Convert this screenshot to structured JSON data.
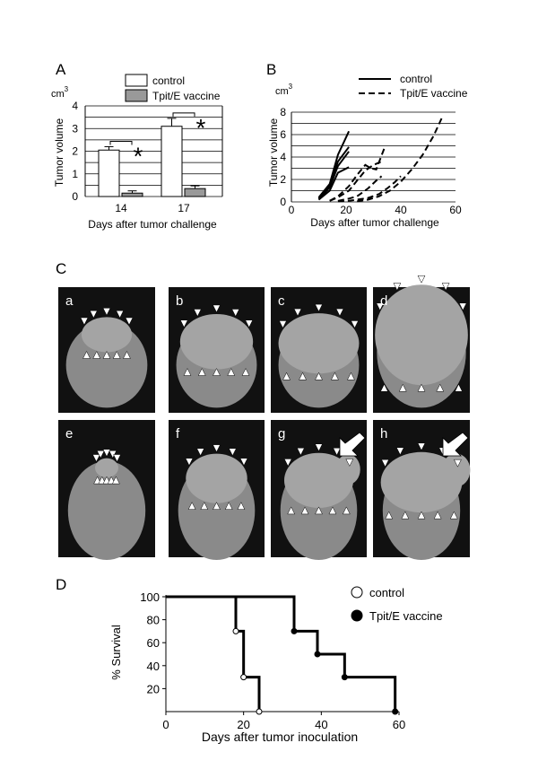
{
  "panels": {
    "A": {
      "letter": "A"
    },
    "B": {
      "letter": "B"
    },
    "C": {
      "letter": "C"
    },
    "D": {
      "letter": "D"
    }
  },
  "chart_data": [
    {
      "panel": "A",
      "type": "bar",
      "unit_label": "cm",
      "unit_exp": "3",
      "ylabel": "Tumor volume",
      "xlabel": "Days after tumor challenge",
      "categories": [
        "14",
        "17"
      ],
      "ylim": [
        0,
        4
      ],
      "yticks": [
        "0",
        "1",
        "2",
        "3",
        "4"
      ],
      "grid": true,
      "legend_position": "top",
      "series": [
        {
          "name": "control",
          "color": "#ffffff",
          "values": [
            2.05,
            3.1
          ],
          "errors": [
            0.15,
            0.35
          ]
        },
        {
          "name": "Tpit/E vaccine",
          "color": "#999999",
          "values": [
            0.15,
            0.35
          ],
          "errors": [
            0.1,
            0.12
          ]
        }
      ],
      "significance": [
        "*",
        "*"
      ]
    },
    {
      "panel": "B",
      "type": "line",
      "unit_label": "cm",
      "unit_exp": "3",
      "ylabel": "Tumor volume",
      "xlabel": "Days after tumor challenge",
      "xlim": [
        0,
        60
      ],
      "ylim": [
        0,
        8
      ],
      "xticks": [
        "0",
        "20",
        "40",
        "60"
      ],
      "yticks": [
        "0",
        "2",
        "4",
        "6",
        "8"
      ],
      "grid": true,
      "legend_position": "top",
      "series": [
        {
          "name": "control",
          "style": "solid",
          "lines": [
            {
              "x": [
                10,
                14,
                17,
                21
              ],
              "y": [
                0.4,
                1.6,
                4.2,
                6.3
              ]
            },
            {
              "x": [
                10,
                14,
                17,
                21
              ],
              "y": [
                0.3,
                1.5,
                3.6,
                4.9
              ]
            },
            {
              "x": [
                10,
                14,
                17,
                21
              ],
              "y": [
                0.2,
                1.3,
                3.2,
                4.5
              ]
            },
            {
              "x": [
                10,
                14,
                17,
                21
              ],
              "y": [
                0.2,
                1.0,
                2.6,
                3.1
              ]
            }
          ]
        },
        {
          "name": "Tpit/E vaccine",
          "style": "dashed",
          "lines": [
            {
              "x": [
                14,
                17,
                21,
                24,
                27,
                29,
                31,
                34
              ],
              "y": [
                0.1,
                0.5,
                1.4,
                2.4,
                3.3,
                3.0,
                2.9,
                4.8
              ]
            },
            {
              "x": [
                14,
                17,
                21,
                24,
                27,
                30,
                33
              ],
              "y": [
                0.1,
                0.4,
                1.0,
                1.9,
                2.8,
                3.3,
                3.6
              ]
            },
            {
              "x": [
                17,
                21,
                24,
                28,
                31,
                33
              ],
              "y": [
                0.1,
                0.3,
                0.5,
                1.2,
                1.9,
                2.3
              ]
            },
            {
              "x": [
                24,
                28,
                32,
                36,
                40,
                44,
                48,
                52,
                55
              ],
              "y": [
                0.05,
                0.2,
                0.5,
                1.0,
                1.8,
                2.9,
                4.2,
                5.9,
                7.5
              ]
            },
            {
              "x": [
                17,
                21,
                24,
                28,
                32,
                35,
                38,
                40
              ],
              "y": [
                0.05,
                0.1,
                0.2,
                0.35,
                0.7,
                1.2,
                1.8,
                2.3
              ]
            }
          ]
        }
      ]
    },
    {
      "panel": "D",
      "type": "line",
      "ylabel": "% Survival",
      "xlabel": "Days after tumor inoculation",
      "xlim": [
        0,
        60
      ],
      "ylim": [
        0,
        100
      ],
      "xticks": [
        "0",
        "20",
        "40",
        "60"
      ],
      "yticks": [
        "20",
        "40",
        "60",
        "80",
        "100"
      ],
      "grid": false,
      "legend_position": "top-right",
      "series": [
        {
          "name": "control",
          "marker": "open-circle",
          "step": true,
          "x": [
            0,
            18,
            20,
            24
          ],
          "y": [
            100,
            70,
            30,
            0
          ]
        },
        {
          "name": "Tpit/E vaccine",
          "marker": "filled-circle",
          "step": true,
          "x": [
            0,
            33,
            39,
            46,
            59
          ],
          "y": [
            100,
            70,
            50,
            30,
            0
          ]
        }
      ]
    }
  ],
  "ct_images": [
    {
      "label": "a"
    },
    {
      "label": "b"
    },
    {
      "label": "c"
    },
    {
      "label": "d"
    },
    {
      "label": "e"
    },
    {
      "label": "f"
    },
    {
      "label": "g"
    },
    {
      "label": "h"
    }
  ]
}
